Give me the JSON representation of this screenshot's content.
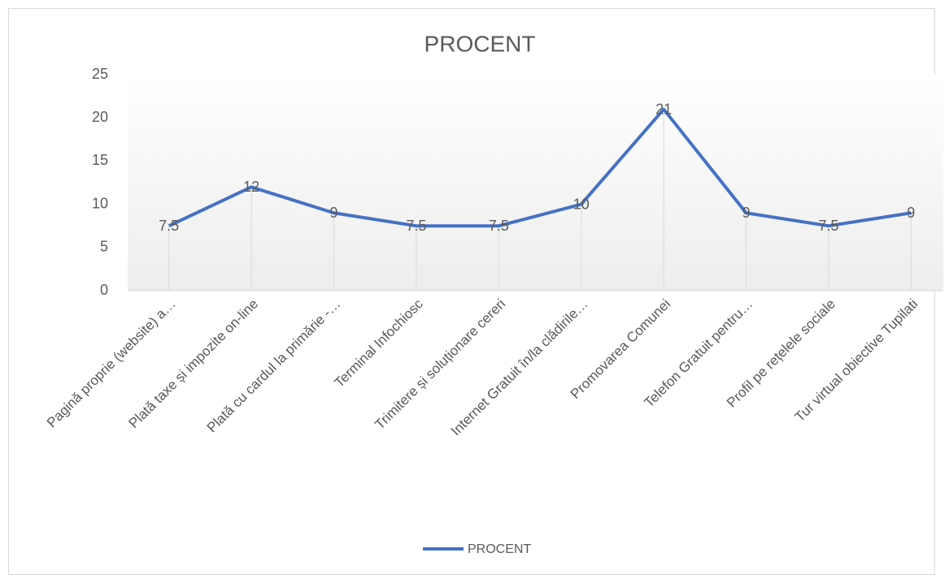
{
  "chart_data": {
    "type": "line",
    "title": "PROCENT",
    "categories": [
      "Pagină proprie (website) a…",
      "Plată taxe și impozite on-line",
      "Plată cu cardul la primărie -…",
      "Terminal Infochiosc",
      "Trimitere și soluționare cereri",
      "Internet Gratuit în/la clădirile…",
      "Promovarea Comunei",
      "Telefon Gratuit pentru…",
      "Profil pe rețelele sociale",
      "Tur virtual obiective Tupilati"
    ],
    "series": [
      {
        "name": "PROCENT",
        "color": "#4472c4",
        "values": [
          7.5,
          12,
          9,
          7.5,
          7.5,
          10,
          21,
          9,
          7.5,
          9
        ]
      }
    ],
    "ylim": [
      0,
      25
    ],
    "yticks": [
      0,
      5,
      10,
      15,
      20,
      25
    ],
    "legend": "bottom",
    "drop_lines": true,
    "data_labels": true
  }
}
